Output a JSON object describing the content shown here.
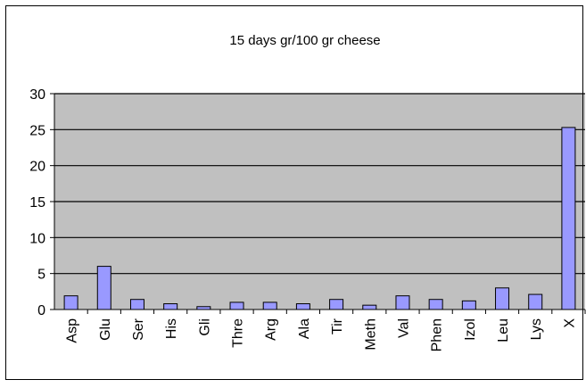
{
  "chart_data": {
    "type": "bar",
    "title": "15 days gr/100 gr cheese",
    "xlabel": "",
    "ylabel": "",
    "categories": [
      "Asp",
      "Glu",
      "Ser",
      "His",
      "Gli",
      "Thre",
      "Arg",
      "Ala",
      "Tir",
      "Meth",
      "Val",
      "Phen",
      "Izol",
      "Leu",
      "Lys",
      "X"
    ],
    "values": [
      1.9,
      6.0,
      1.4,
      0.8,
      0.4,
      1.0,
      1.0,
      0.8,
      1.4,
      0.6,
      1.9,
      1.4,
      1.2,
      3.0,
      2.1,
      25.3
    ],
    "ylim": [
      0,
      30
    ],
    "yticks": [
      0,
      5,
      10,
      15,
      20,
      25,
      30
    ],
    "grid": true,
    "legend": "none",
    "colors": {
      "bar_fill": "#9999ff",
      "bar_stroke": "#000000",
      "plot_bg": "#c0c0c0",
      "gridline": "#000000"
    }
  }
}
